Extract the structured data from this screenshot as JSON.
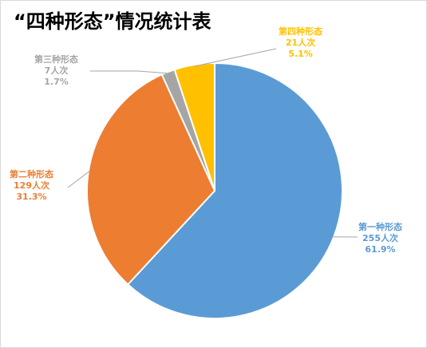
{
  "chart_data": {
    "type": "pie",
    "title": "“四种形态”情况统计表",
    "unit": "人次",
    "slices": [
      {
        "name": "第一种形态",
        "value": 255,
        "percent": "61.9%",
        "color": "#5b9bd5"
      },
      {
        "name": "第二种形态",
        "value": 129,
        "percent": "31.3%",
        "color": "#ed7d31"
      },
      {
        "name": "第三种形态",
        "value": 7,
        "percent": "1.7%",
        "color": "#a5a5a5"
      },
      {
        "name": "第四种形态",
        "value": 21,
        "percent": "5.1%",
        "color": "#ffc000"
      }
    ],
    "value_labels": [
      "255人次",
      "129人次",
      "7人次",
      "21人次"
    ],
    "legend": "none"
  }
}
